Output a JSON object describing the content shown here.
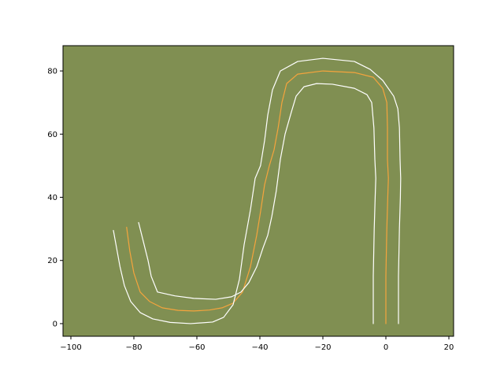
{
  "chart_data": {
    "type": "line",
    "title": "",
    "xlabel": "",
    "ylabel": "",
    "xlim": [
      -102.5,
      21.5
    ],
    "ylim": [
      -4,
      88
    ],
    "xticks": [
      -100,
      -80,
      -60,
      -40,
      -20,
      0,
      20
    ],
    "yticks": [
      0,
      20,
      40,
      60,
      80
    ],
    "grid": false,
    "legend": "none",
    "background_color": "#808f52",
    "series": [
      {
        "role": "centerline",
        "color": "#f5a43d",
        "x": [
          0,
          0,
          0.3,
          0.6,
          0.8,
          0.5,
          0.5,
          0.3,
          -1,
          -4,
          -10,
          -20,
          -28,
          -31.5,
          -33,
          -34.2,
          -35.5,
          -37,
          -38.5,
          -39.7,
          -41,
          -43,
          -45.5,
          -48.5,
          -52,
          -56,
          -61,
          -66,
          -71,
          -75,
          -78,
          -80,
          -81.3,
          -82.3
        ],
        "y": [
          0,
          15,
          30,
          40,
          46,
          52,
          62,
          70,
          74.5,
          78,
          79.5,
          80,
          79,
          76,
          70,
          62,
          55,
          50,
          44,
          36,
          28,
          18,
          10,
          6.5,
          5,
          4.3,
          4,
          4.2,
          5,
          7,
          10,
          16,
          23,
          30.5
        ]
      },
      {
        "role": "outer-boundary",
        "color": "#ffffff",
        "x": [
          4,
          4,
          4.3,
          4.6,
          4.7,
          4.5,
          4.3,
          3.8,
          2.5,
          -1,
          -5,
          -10,
          -20,
          -28,
          -33.5,
          -36,
          -37.5,
          -38.5,
          -39.8,
          -41.5,
          -43,
          -45,
          -46.5,
          -48.5,
          -51.5,
          -55,
          -62,
          -68.5,
          -74,
          -78,
          -81,
          -83,
          -84.4,
          -85.5,
          -86.5
        ],
        "y": [
          0,
          15,
          30,
          40,
          46,
          52,
          62,
          68,
          72,
          77,
          80.5,
          83,
          84,
          83,
          80,
          74,
          66,
          58,
          50,
          46,
          36,
          25,
          14,
          6,
          2,
          0.5,
          0,
          0.4,
          1.5,
          3.5,
          7,
          12,
          18,
          24,
          29.5
        ]
      },
      {
        "role": "inner-boundary",
        "color": "#ffffff",
        "x": [
          -4,
          -4,
          -3.7,
          -3.4,
          -3.2,
          -3.5,
          -3.8,
          -4.5,
          -6,
          -10,
          -17,
          -22,
          -26,
          -28.5,
          -30,
          -32,
          -33.5,
          -34.8,
          -36.2,
          -37.5,
          -39,
          -41,
          -43.5,
          -46,
          -49,
          -54,
          -61,
          -67,
          -72.5,
          -74.5,
          -75.5,
          -77,
          -78.5
        ],
        "y": [
          0,
          15,
          30,
          40,
          46,
          52,
          62,
          70,
          72.5,
          74.5,
          75.8,
          76,
          75,
          72,
          67,
          60,
          52,
          42,
          34,
          28,
          24,
          18,
          13,
          10,
          8.5,
          7.7,
          8,
          8.8,
          10,
          15,
          20,
          26,
          32
        ]
      }
    ]
  }
}
